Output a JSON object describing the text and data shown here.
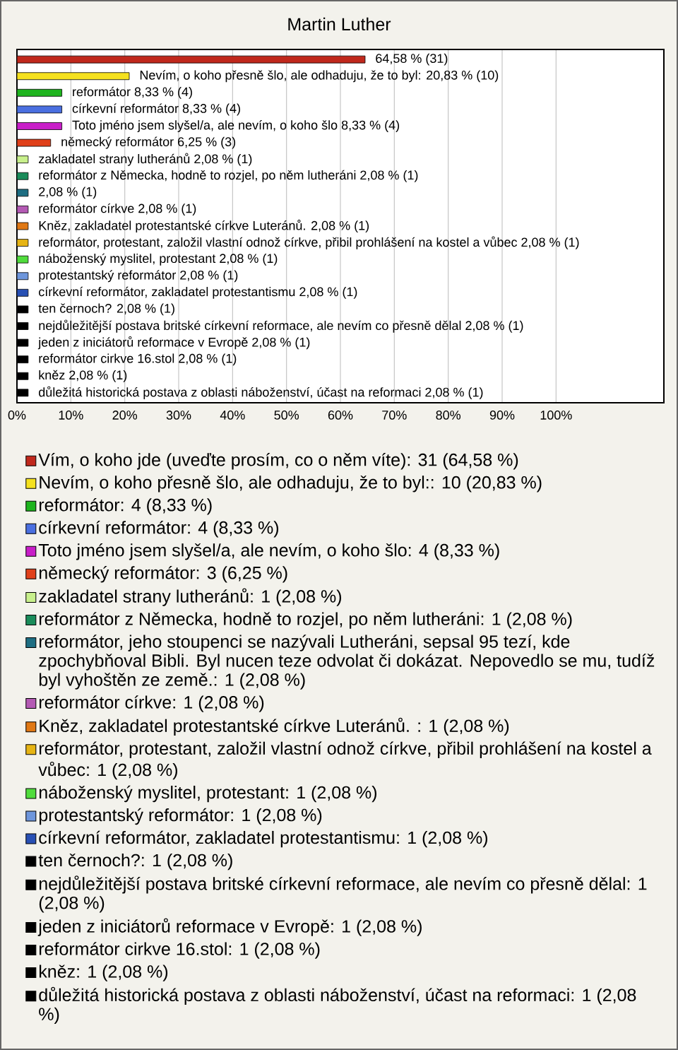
{
  "chart_data": {
    "type": "bar",
    "orientation": "horizontal",
    "title": "Martin Luther",
    "categories": [
      null,
      null,
      null,
      null,
      null,
      null,
      null,
      null,
      null,
      null,
      null,
      null,
      null,
      null,
      null,
      null,
      null,
      null,
      null,
      null,
      null
    ],
    "series": [
      {
        "name": "Vím, o koho jde (uveďte prosím, co o něm víte): 31 (64,58 %)",
        "color": "#c0281c",
        "values": [
          64.58,
          null,
          null,
          null,
          null,
          null,
          null,
          null,
          null,
          null,
          null,
          null,
          null,
          null,
          null,
          null,
          null,
          null,
          null,
          null,
          null
        ],
        "value_labels": [
          "64,58 % (31)",
          null,
          null,
          null,
          null,
          null,
          null,
          null,
          null,
          null,
          null,
          null,
          null,
          null,
          null,
          null,
          null,
          null,
          null,
          null,
          null
        ]
      },
      {
        "name": "Nevím, o koho přesně šlo, ale odhaduju, že to byl:: 10 (20,83 %)",
        "color": "#f5e11e",
        "values": [
          null,
          20.83,
          null,
          null,
          null,
          null,
          null,
          null,
          null,
          null,
          null,
          null,
          null,
          null,
          null,
          null,
          null,
          null,
          null,
          null,
          null
        ],
        "value_labels": [
          null,
          "Nevím, o koho přesně šlo, ale odhaduju, že to byl: 20,83 % (10)",
          null,
          null,
          null,
          null,
          null,
          null,
          null,
          null,
          null,
          null,
          null,
          null,
          null,
          null,
          null,
          null,
          null,
          null,
          null
        ]
      },
      {
        "name": "reformátor: 4 (8,33 %)",
        "color": "#1eb41e",
        "values": [
          null,
          null,
          8.33,
          null,
          null,
          null,
          null,
          null,
          null,
          null,
          null,
          null,
          null,
          null,
          null,
          null,
          null,
          null,
          null,
          null,
          null
        ],
        "value_labels": [
          null,
          null,
          "reformátor 8,33 % (4)",
          null,
          null,
          null,
          null,
          null,
          null,
          null,
          null,
          null,
          null,
          null,
          null,
          null,
          null,
          null,
          null,
          null,
          null
        ]
      },
      {
        "name": "církevní reformátor: 4 (8,33 %)",
        "color": "#4a6fe0",
        "values": [
          null,
          null,
          null,
          8.33,
          null,
          null,
          null,
          null,
          null,
          null,
          null,
          null,
          null,
          null,
          null,
          null,
          null,
          null,
          null,
          null,
          null
        ],
        "value_labels": [
          null,
          null,
          null,
          "církevní reformátor 8,33 % (4)",
          null,
          null,
          null,
          null,
          null,
          null,
          null,
          null,
          null,
          null,
          null,
          null,
          null,
          null,
          null,
          null,
          null
        ]
      },
      {
        "name": "Toto jméno jsem slyšel/a, ale nevím, o koho šlo: 4 (8,33 %)",
        "color": "#c81ec8",
        "values": [
          null,
          null,
          null,
          null,
          8.33,
          null,
          null,
          null,
          null,
          null,
          null,
          null,
          null,
          null,
          null,
          null,
          null,
          null,
          null,
          null,
          null
        ],
        "value_labels": [
          null,
          null,
          null,
          null,
          "Toto jméno jsem slyšel/a, ale nevím, o koho šlo 8,33 % (4)",
          null,
          null,
          null,
          null,
          null,
          null,
          null,
          null,
          null,
          null,
          null,
          null,
          null,
          null,
          null,
          null
        ]
      },
      {
        "name": "německý reformátor: 3 (6,25 %)",
        "color": "#e0401a",
        "values": [
          null,
          null,
          null,
          null,
          null,
          6.25,
          null,
          null,
          null,
          null,
          null,
          null,
          null,
          null,
          null,
          null,
          null,
          null,
          null,
          null,
          null
        ],
        "value_labels": [
          null,
          null,
          null,
          null,
          null,
          "německý reformátor 6,25 % (3)",
          null,
          null,
          null,
          null,
          null,
          null,
          null,
          null,
          null,
          null,
          null,
          null,
          null,
          null,
          null
        ]
      },
      {
        "name": "zakladatel strany lutheránů: 1 (2,08 %)",
        "color": "#c8f08c",
        "values": [
          null,
          null,
          null,
          null,
          null,
          null,
          2.08,
          null,
          null,
          null,
          null,
          null,
          null,
          null,
          null,
          null,
          null,
          null,
          null,
          null,
          null
        ],
        "value_labels": [
          null,
          null,
          null,
          null,
          null,
          null,
          "zakladatel strany lutheránů 2,08 % (1)",
          null,
          null,
          null,
          null,
          null,
          null,
          null,
          null,
          null,
          null,
          null,
          null,
          null,
          null
        ]
      },
      {
        "name": "reformátor z Německa, hodně to rozjel, po něm lutheráni: 1 (2,08 %)",
        "color": "#1a8c5a",
        "values": [
          null,
          null,
          null,
          null,
          null,
          null,
          null,
          2.08,
          null,
          null,
          null,
          null,
          null,
          null,
          null,
          null,
          null,
          null,
          null,
          null,
          null
        ],
        "value_labels": [
          null,
          null,
          null,
          null,
          null,
          null,
          null,
          "reformátor z Německa, hodně to rozjel, po něm lutheráni 2,08 % (1)",
          null,
          null,
          null,
          null,
          null,
          null,
          null,
          null,
          null,
          null,
          null,
          null,
          null
        ]
      },
      {
        "name": "reformátor, jeho stoupenci se nazývali Lutheráni, sepsal 95 tezí, kde zpochybňoval Bibli. Byl nucen teze odvolat či dokázat. Nepovedlo se mu, tudíž byl vyhoštěn ze země.: 1 (2,08 %)",
        "color": "#1e6e82",
        "values": [
          null,
          null,
          null,
          null,
          null,
          null,
          null,
          null,
          2.08,
          null,
          null,
          null,
          null,
          null,
          null,
          null,
          null,
          null,
          null,
          null,
          null
        ],
        "value_labels": [
          null,
          null,
          null,
          null,
          null,
          null,
          null,
          null,
          "2,08 % (1)",
          null,
          null,
          null,
          null,
          null,
          null,
          null,
          null,
          null,
          null,
          null,
          null
        ]
      },
      {
        "name": "reformátor církve: 1 (2,08 %)",
        "color": "#b45ab4",
        "values": [
          null,
          null,
          null,
          null,
          null,
          null,
          null,
          null,
          null,
          2.08,
          null,
          null,
          null,
          null,
          null,
          null,
          null,
          null,
          null,
          null,
          null
        ],
        "value_labels": [
          null,
          null,
          null,
          null,
          null,
          null,
          null,
          null,
          null,
          "reformátor církve 2,08 % (1)",
          null,
          null,
          null,
          null,
          null,
          null,
          null,
          null,
          null,
          null,
          null
        ]
      },
      {
        "name": "Kněz, zakladatel protestantské církve Luteránů. : 1 (2,08 %)",
        "color": "#e07814",
        "values": [
          null,
          null,
          null,
          null,
          null,
          null,
          null,
          null,
          null,
          null,
          2.08,
          null,
          null,
          null,
          null,
          null,
          null,
          null,
          null,
          null,
          null
        ],
        "value_labels": [
          null,
          null,
          null,
          null,
          null,
          null,
          null,
          null,
          null,
          null,
          "Kněz, zakladatel protestantské církve Luteránů.  2,08 % (1)",
          null,
          null,
          null,
          null,
          null,
          null,
          null,
          null,
          null,
          null
        ]
      },
      {
        "name": "reformátor, protestant, založil vlastní odnož církve, přibil prohlášení na kostel a vůbec: 1 (2,08 %)",
        "color": "#e6b414",
        "values": [
          null,
          null,
          null,
          null,
          null,
          null,
          null,
          null,
          null,
          null,
          null,
          2.08,
          null,
          null,
          null,
          null,
          null,
          null,
          null,
          null,
          null
        ],
        "value_labels": [
          null,
          null,
          null,
          null,
          null,
          null,
          null,
          null,
          null,
          null,
          null,
          "reformátor, protestant, založil vlastní odnož církve, přibil prohlášení na kostel a vůbec 2,08 % (1)",
          null,
          null,
          null,
          null,
          null,
          null,
          null,
          null,
          null
        ]
      },
      {
        "name": "náboženský myslitel, protestant: 1 (2,08 %)",
        "color": "#50dc3c",
        "values": [
          null,
          null,
          null,
          null,
          null,
          null,
          null,
          null,
          null,
          null,
          null,
          null,
          2.08,
          null,
          null,
          null,
          null,
          null,
          null,
          null,
          null
        ],
        "value_labels": [
          null,
          null,
          null,
          null,
          null,
          null,
          null,
          null,
          null,
          null,
          null,
          null,
          "náboženský myslitel, protestant 2,08 % (1)",
          null,
          null,
          null,
          null,
          null,
          null,
          null,
          null
        ]
      },
      {
        "name": "protestantský reformátor: 1 (2,08 %)",
        "color": "#6e96dc",
        "values": [
          null,
          null,
          null,
          null,
          null,
          null,
          null,
          null,
          null,
          null,
          null,
          null,
          null,
          2.08,
          null,
          null,
          null,
          null,
          null,
          null,
          null
        ],
        "value_labels": [
          null,
          null,
          null,
          null,
          null,
          null,
          null,
          null,
          null,
          null,
          null,
          null,
          null,
          "protestantský reformátor 2,08 % (1)",
          null,
          null,
          null,
          null,
          null,
          null,
          null
        ]
      },
      {
        "name": "církevní reformátor, zakladatel protestantismu: 1 (2,08 %)",
        "color": "#2850b4",
        "values": [
          null,
          null,
          null,
          null,
          null,
          null,
          null,
          null,
          null,
          null,
          null,
          null,
          null,
          null,
          2.08,
          null,
          null,
          null,
          null,
          null,
          null
        ],
        "value_labels": [
          null,
          null,
          null,
          null,
          null,
          null,
          null,
          null,
          null,
          null,
          null,
          null,
          null,
          null,
          "církevní reformátor, zakladatel protestantismu 2,08 % (1)",
          null,
          null,
          null,
          null,
          null,
          null
        ]
      },
      {
        "name": "ten černoch?: 1 (2,08 %)",
        "color": "#000000",
        "values": [
          null,
          null,
          null,
          null,
          null,
          null,
          null,
          null,
          null,
          null,
          null,
          null,
          null,
          null,
          null,
          2.08,
          null,
          null,
          null,
          null,
          null
        ],
        "value_labels": [
          null,
          null,
          null,
          null,
          null,
          null,
          null,
          null,
          null,
          null,
          null,
          null,
          null,
          null,
          null,
          "ten černoch? 2,08 % (1)",
          null,
          null,
          null,
          null,
          null
        ]
      },
      {
        "name": "nejdůležitější postava britské církevní reformace, ale nevím co přesně dělal: 1 (2,08 %)",
        "color": "#000000",
        "values": [
          null,
          null,
          null,
          null,
          null,
          null,
          null,
          null,
          null,
          null,
          null,
          null,
          null,
          null,
          null,
          null,
          2.08,
          null,
          null,
          null,
          null
        ],
        "value_labels": [
          null,
          null,
          null,
          null,
          null,
          null,
          null,
          null,
          null,
          null,
          null,
          null,
          null,
          null,
          null,
          null,
          "nejdůležitější postava britské církevní reformace, ale nevím co přesně dělal 2,08 % (1)",
          null,
          null,
          null,
          null
        ]
      },
      {
        "name": "jeden z iniciátorů reformace v Evropě: 1 (2,08 %)",
        "color": "#000000",
        "values": [
          null,
          null,
          null,
          null,
          null,
          null,
          null,
          null,
          null,
          null,
          null,
          null,
          null,
          null,
          null,
          null,
          null,
          2.08,
          null,
          null,
          null
        ],
        "value_labels": [
          null,
          null,
          null,
          null,
          null,
          null,
          null,
          null,
          null,
          null,
          null,
          null,
          null,
          null,
          null,
          null,
          null,
          "jeden z iniciátorů reformace v Evropě 2,08 % (1)",
          null,
          null,
          null
        ]
      },
      {
        "name": "reformátor cirkve 16.stol: 1 (2,08 %)",
        "color": "#000000",
        "values": [
          null,
          null,
          null,
          null,
          null,
          null,
          null,
          null,
          null,
          null,
          null,
          null,
          null,
          null,
          null,
          null,
          null,
          null,
          2.08,
          null,
          null
        ],
        "value_labels": [
          null,
          null,
          null,
          null,
          null,
          null,
          null,
          null,
          null,
          null,
          null,
          null,
          null,
          null,
          null,
          null,
          null,
          null,
          "reformátor cirkve 16.stol 2,08 % (1)",
          null,
          null
        ]
      },
      {
        "name": "kněz: 1 (2,08 %)",
        "color": "#000000",
        "values": [
          null,
          null,
          null,
          null,
          null,
          null,
          null,
          null,
          null,
          null,
          null,
          null,
          null,
          null,
          null,
          null,
          null,
          null,
          null,
          2.08,
          null
        ],
        "value_labels": [
          null,
          null,
          null,
          null,
          null,
          null,
          null,
          null,
          null,
          null,
          null,
          null,
          null,
          null,
          null,
          null,
          null,
          null,
          null,
          "kněz 2,08 % (1)",
          null
        ]
      },
      {
        "name": "důležitá historická postava z oblasti náboženství, účast na reformaci: 1 (2,08 %)",
        "color": "#000000",
        "values": [
          null,
          null,
          null,
          null,
          null,
          null,
          null,
          null,
          null,
          null,
          null,
          null,
          null,
          null,
          null,
          null,
          null,
          null,
          null,
          null,
          2.08
        ],
        "value_labels": [
          null,
          null,
          null,
          null,
          null,
          null,
          null,
          null,
          null,
          null,
          null,
          null,
          null,
          null,
          null,
          null,
          null,
          null,
          null,
          null,
          "důležitá historická postava z oblasti náboženství, účast na reformaci 2,08 % (1)"
        ]
      }
    ],
    "xlim": [
      0,
      120
    ],
    "xticks": [
      {
        "value": 0,
        "label": "0%"
      },
      {
        "value": 10,
        "label": "10%"
      },
      {
        "value": 20,
        "label": "20%"
      },
      {
        "value": 30,
        "label": "30%"
      },
      {
        "value": 40,
        "label": "40%"
      },
      {
        "value": 50,
        "label": "50%"
      },
      {
        "value": 60,
        "label": "60%"
      },
      {
        "value": 70,
        "label": "70%"
      },
      {
        "value": 80,
        "label": "80%"
      },
      {
        "value": 90,
        "label": "90%"
      },
      {
        "value": 100,
        "label": "100%"
      }
    ],
    "tick_labels": "x",
    "grid": "x",
    "legend": "bottom"
  }
}
